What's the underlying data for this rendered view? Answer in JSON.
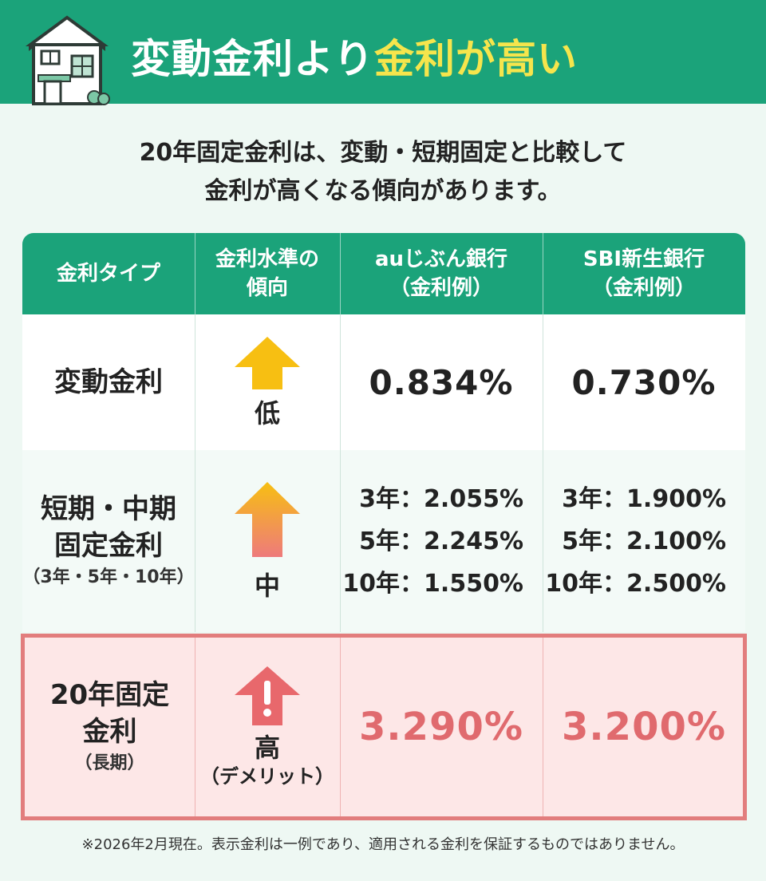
{
  "header": {
    "title_part1": "変動金利より",
    "title_part2": "金利が高い",
    "accent_color": "#f6e54c",
    "brand_color": "#1ba37a"
  },
  "lead": {
    "line1": "20年固定金利は、変動・短期固定と比較して",
    "line2": "金利が高くなる傾向があります。"
  },
  "table": {
    "headers": [
      {
        "line1": "金利タイプ",
        "line2": ""
      },
      {
        "line1": "金利水準の",
        "line2": "傾向"
      },
      {
        "line1": "auじぶん銀行",
        "line2": "（金利例）"
      },
      {
        "line1": "SBI新生銀行",
        "line2": "（金利例）"
      }
    ],
    "rows": [
      {
        "type_line1": "変動金利",
        "type_line2": "",
        "type_sub": "",
        "level": "低",
        "level_sub": "",
        "arrow_icon": "up-arrow-icon",
        "au": "0.834%",
        "sbi": "0.730%"
      },
      {
        "type_line1": "短期・中期",
        "type_line2": "固定金利",
        "type_sub": "（3年・5年・10年）",
        "level": "中",
        "level_sub": "",
        "arrow_icon": "up-arrow-icon",
        "au_rates": [
          "3年：2.055%",
          "5年：2.245%",
          "10年：1.550%"
        ],
        "sbi_rates": [
          "3年：1.900%",
          "5年：2.100%",
          "10年：2.500%"
        ]
      },
      {
        "type_line1": "20年固定",
        "type_line2": "金利",
        "type_sub": "（長期）",
        "level": "高",
        "level_sub": "（デメリット）",
        "arrow_icon": "warning-arrow-icon",
        "au": "3.290%",
        "sbi": "3.200%",
        "highlight_color": "#e06a6e"
      }
    ]
  },
  "note": "※2026年2月現在。表示金利は一例であり、適用される金利を保証するものではありません。"
}
